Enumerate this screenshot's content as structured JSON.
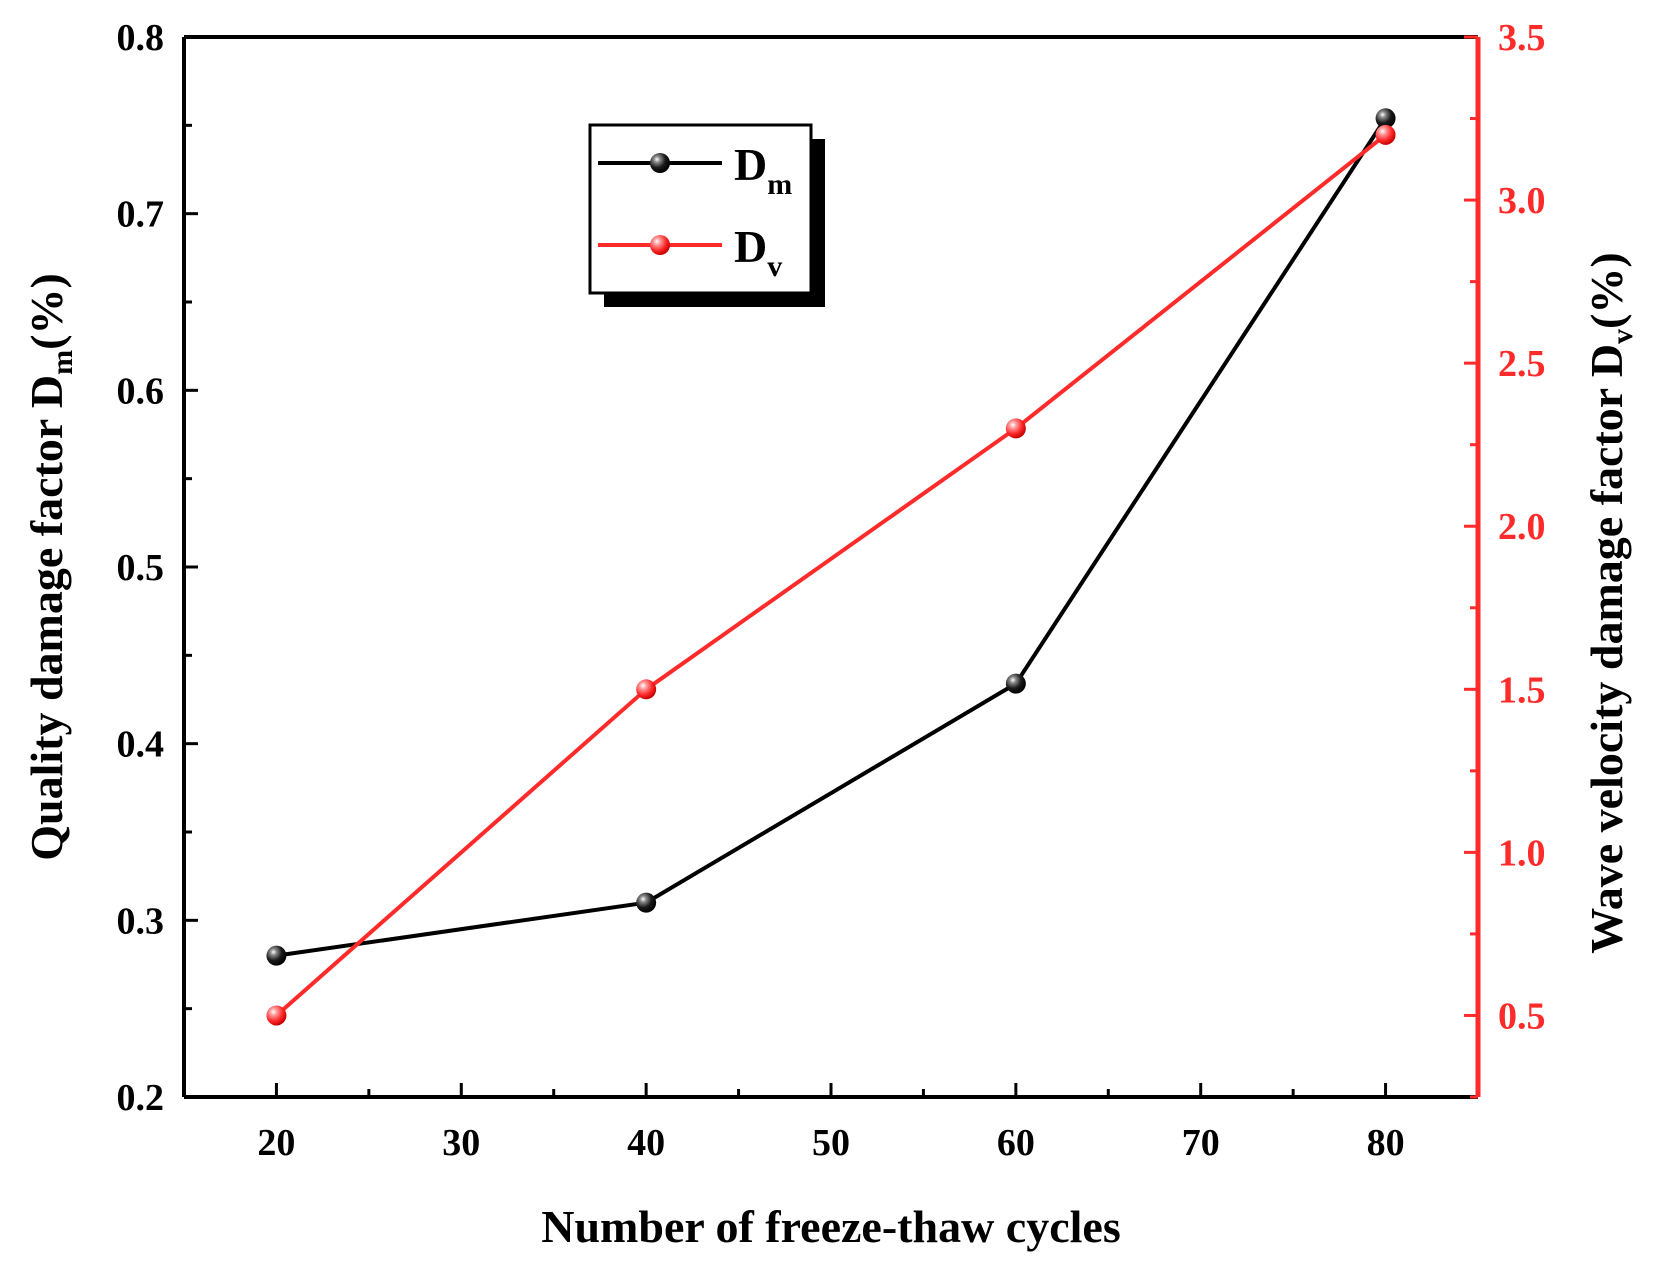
{
  "chart_data": {
    "type": "line",
    "x": [
      20,
      40,
      60,
      80
    ],
    "xlabel": "Number of freeze-thaw cycles",
    "xlim": [
      15,
      85
    ],
    "xticks": [
      20,
      30,
      40,
      50,
      60,
      70,
      80
    ],
    "xtick_labels": [
      "20",
      "30",
      "40",
      "50",
      "60",
      "70",
      "80"
    ],
    "ylabel_left": {
      "text": "Quality damage factor D",
      "subscript": "m",
      "suffix": "(%)"
    },
    "ylim_left": [
      0.2,
      0.8
    ],
    "yticks_left": [
      0.2,
      0.3,
      0.4,
      0.5,
      0.6,
      0.7,
      0.8
    ],
    "ytick_labels_left": [
      "0.2",
      "0.3",
      "0.4",
      "0.5",
      "0.6",
      "0.7",
      "0.8"
    ],
    "ylabel_right": {
      "text": "Wave velocity damage factor D",
      "subscript": "v",
      "suffix": "(%)"
    },
    "ylim_right": [
      0.25,
      3.5
    ],
    "yticks_right": [
      0.5,
      1.0,
      1.5,
      2.0,
      2.5,
      3.0,
      3.5
    ],
    "ytick_labels_right": [
      "0.5",
      "1.0",
      "1.5",
      "2.0",
      "2.5",
      "3.0",
      "3.5"
    ],
    "series": [
      {
        "name": "D",
        "subscript": "m",
        "axis": "left",
        "color": "#000000",
        "values": [
          0.28,
          0.31,
          0.434,
          0.754
        ]
      },
      {
        "name": "D",
        "subscript": "v",
        "axis": "right",
        "color": "#ff2a2a",
        "values": [
          0.5,
          1.5,
          2.3,
          3.2
        ]
      }
    ],
    "legend_position": "top-center",
    "grid": false
  },
  "colors": {
    "axis": "#000000",
    "right_axis": "#ff2a2a"
  }
}
